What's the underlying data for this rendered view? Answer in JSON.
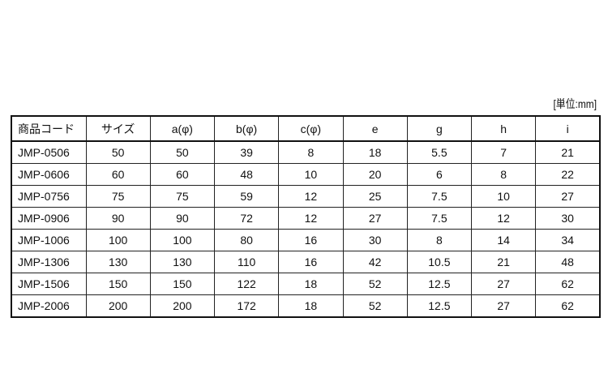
{
  "unit_label": "[単位:mm]",
  "table": {
    "headers": [
      "商品コード",
      "サイズ",
      "a(φ)",
      "b(φ)",
      "c(φ)",
      "e",
      "g",
      "h",
      "i"
    ],
    "rows": [
      [
        "JMP-0506",
        "50",
        "50",
        "39",
        "8",
        "18",
        "5.5",
        "7",
        "21"
      ],
      [
        "JMP-0606",
        "60",
        "60",
        "48",
        "10",
        "20",
        "6",
        "8",
        "22"
      ],
      [
        "JMP-0756",
        "75",
        "75",
        "59",
        "12",
        "25",
        "7.5",
        "10",
        "27"
      ],
      [
        "JMP-0906",
        "90",
        "90",
        "72",
        "12",
        "27",
        "7.5",
        "12",
        "30"
      ],
      [
        "JMP-1006",
        "100",
        "100",
        "80",
        "16",
        "30",
        "8",
        "14",
        "34"
      ],
      [
        "JMP-1306",
        "130",
        "130",
        "110",
        "16",
        "42",
        "10.5",
        "21",
        "48"
      ],
      [
        "JMP-1506",
        "150",
        "150",
        "122",
        "18",
        "52",
        "12.5",
        "27",
        "62"
      ],
      [
        "JMP-2006",
        "200",
        "200",
        "172",
        "18",
        "52",
        "12.5",
        "27",
        "62"
      ]
    ]
  }
}
